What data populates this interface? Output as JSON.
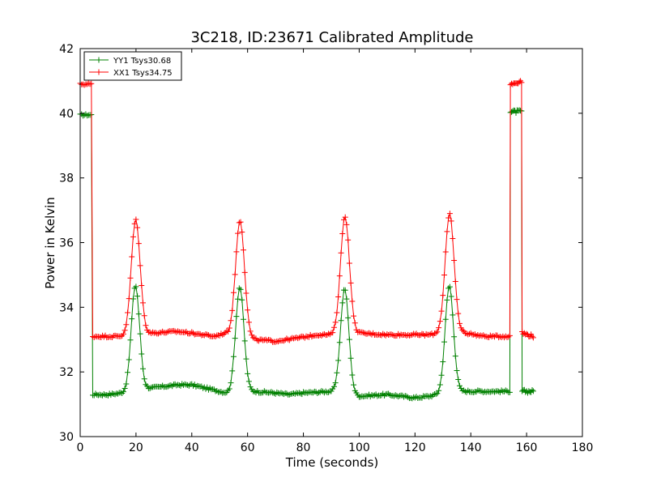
{
  "chart_data": {
    "type": "line",
    "title": "3C218, ID:23671 Calibrated Amplitude",
    "xlabel": "Time (seconds)",
    "ylabel": "Power in Kelvin",
    "xlim": [
      0,
      180
    ],
    "ylim": [
      30,
      42
    ],
    "xticks": [
      0,
      20,
      40,
      60,
      80,
      100,
      120,
      140,
      160,
      180
    ],
    "yticks": [
      30,
      32,
      34,
      36,
      38,
      40,
      42
    ],
    "grid": false,
    "legend_position": "top-left",
    "marker": "+",
    "series": [
      {
        "name": "YY1 Tsys30.68",
        "color": "#008000",
        "baseline_segments": [
          [
            4.5,
            31.3
          ],
          [
            10,
            31.3
          ],
          [
            15,
            31.35
          ],
          [
            25,
            31.5
          ],
          [
            35,
            31.6
          ],
          [
            40,
            31.6
          ],
          [
            50,
            31.4
          ],
          [
            53,
            31.35
          ],
          [
            62,
            31.4
          ],
          [
            70,
            31.35
          ],
          [
            75,
            31.3
          ],
          [
            80,
            31.35
          ],
          [
            90,
            31.4
          ],
          [
            100,
            31.25
          ],
          [
            110,
            31.3
          ],
          [
            120,
            31.2
          ],
          [
            125,
            31.25
          ],
          [
            135,
            31.4
          ],
          [
            145,
            31.4
          ],
          [
            154,
            31.4
          ]
        ],
        "peaks": [
          {
            "center": 19.8,
            "amplitude": 3.25,
            "sigma": 1.5
          },
          {
            "center": 57.2,
            "amplitude": 3.25,
            "sigma": 1.5
          },
          {
            "center": 94.8,
            "amplitude": 3.25,
            "sigma": 1.5
          },
          {
            "center": 132.3,
            "amplitude": 3.3,
            "sigma": 1.5
          }
        ],
        "start_segment": [
          [
            0,
            39.95
          ],
          [
            4.0,
            39.95
          ]
        ],
        "end_segments": [
          {
            "points": [
              [
                154.2,
                40.05
              ],
              [
                158.2,
                40.05
              ]
            ]
          },
          {
            "points": [
              [
                158.4,
                31.4
              ],
              [
                162.5,
                31.4
              ]
            ]
          }
        ]
      },
      {
        "name": "XX1 Tsys34.75",
        "color": "#ff0000",
        "baseline_segments": [
          [
            4.5,
            33.1
          ],
          [
            10,
            33.1
          ],
          [
            15,
            33.1
          ],
          [
            25,
            33.2
          ],
          [
            35,
            33.25
          ],
          [
            40,
            33.2
          ],
          [
            48,
            33.1
          ],
          [
            52,
            33.2
          ],
          [
            62,
            33.0
          ],
          [
            70,
            32.95
          ],
          [
            78,
            33.05
          ],
          [
            85,
            33.15
          ],
          [
            90,
            33.15
          ],
          [
            100,
            33.2
          ],
          [
            110,
            33.15
          ],
          [
            120,
            33.15
          ],
          [
            125,
            33.15
          ],
          [
            135,
            33.25
          ],
          [
            145,
            33.1
          ],
          [
            154,
            33.1
          ]
        ],
        "peaks": [
          {
            "center": 19.9,
            "amplitude": 3.55,
            "sigma": 1.6
          },
          {
            "center": 57.3,
            "amplitude": 3.6,
            "sigma": 1.6
          },
          {
            "center": 94.9,
            "amplitude": 3.65,
            "sigma": 1.6
          },
          {
            "center": 132.4,
            "amplitude": 3.65,
            "sigma": 1.6
          }
        ],
        "start_segment": [
          [
            0,
            40.9
          ],
          [
            4.0,
            40.9
          ]
        ],
        "end_segments": [
          {
            "points": [
              [
                154.2,
                40.9
              ],
              [
                158.2,
                41.0
              ]
            ]
          },
          {
            "points": [
              [
                158.4,
                33.2
              ],
              [
                162.5,
                33.1
              ]
            ]
          }
        ]
      }
    ]
  }
}
